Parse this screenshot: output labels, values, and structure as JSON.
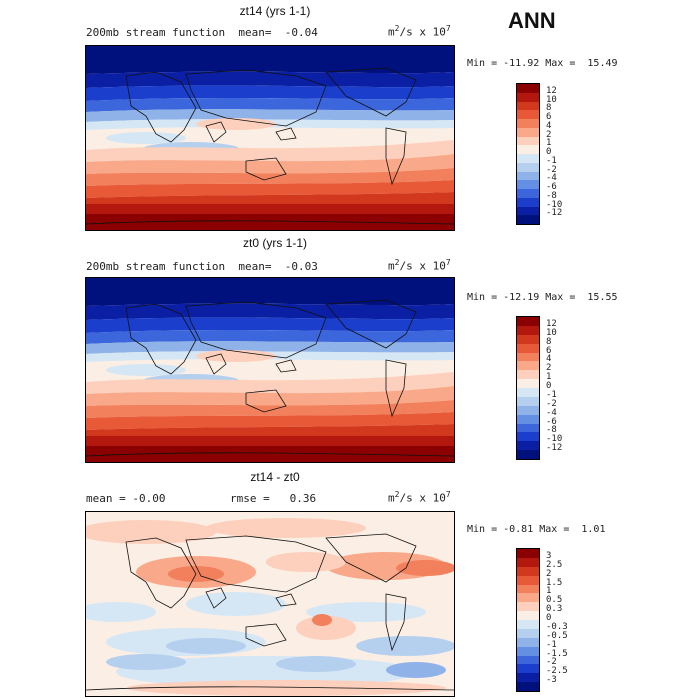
{
  "season": "ANN",
  "panels": [
    {
      "id": "zt14",
      "title": "zt14 (yrs 1-1)",
      "subtitle_left": "200mb stream function",
      "mean_label": "mean=",
      "mean_value": "-0.04",
      "units_base": "m",
      "units_sup": "2",
      "units_mid": "/s x 10",
      "units_sup2": "7",
      "minmax": "Min = -11.92 Max =  15.49",
      "colorbar_labels": [
        "12",
        "10",
        "8",
        "6",
        "4",
        "2",
        "1",
        "0",
        "-1",
        "-2",
        "-4",
        "-6",
        "-8",
        "-10",
        "-12"
      ],
      "colorbar_colors": [
        "#8b0000",
        "#b2180e",
        "#d2381d",
        "#e85a37",
        "#f2805c",
        "#f9a98a",
        "#fcd0bc",
        "#fbeee4",
        "#d5e6f5",
        "#b5d0ee",
        "#8fb3e8",
        "#6390e4",
        "#3c66dc",
        "#1b3fcc",
        "#0a1fa4",
        "#00107d"
      ]
    },
    {
      "id": "zt0",
      "title": "zt0 (yrs 1-1)",
      "subtitle_left": "200mb stream function",
      "mean_label": "mean=",
      "mean_value": "-0.03",
      "units_base": "m",
      "units_sup": "2",
      "units_mid": "/s x 10",
      "units_sup2": "7",
      "minmax": "Min = -12.19 Max =  15.55",
      "colorbar_labels": [
        "12",
        "10",
        "8",
        "6",
        "4",
        "2",
        "1",
        "0",
        "-1",
        "-2",
        "-4",
        "-6",
        "-8",
        "-10",
        "-12"
      ],
      "colorbar_colors": [
        "#8b0000",
        "#b2180e",
        "#d2381d",
        "#e85a37",
        "#f2805c",
        "#f9a98a",
        "#fcd0bc",
        "#fbeee4",
        "#d5e6f5",
        "#b5d0ee",
        "#8fb3e8",
        "#6390e4",
        "#3c66dc",
        "#1b3fcc",
        "#0a1fa4",
        "#00107d"
      ]
    },
    {
      "id": "diff",
      "title": "zt14 - zt0",
      "subtitle_left": "mean =  -0.00",
      "rmse_label": "rmse =",
      "rmse_value": "0.36",
      "units_base": "m",
      "units_sup": "2",
      "units_mid": "/s x 10",
      "units_sup2": "7",
      "minmax": "Min = -0.81 Max =  1.01",
      "colorbar_labels": [
        "3",
        "2.5",
        "2",
        "1.5",
        "1",
        "0.5",
        "0.3",
        "0",
        "-0.3",
        "-0.5",
        "-1",
        "-1.5",
        "-2",
        "-2.5",
        "-3"
      ],
      "colorbar_colors": [
        "#8b0000",
        "#b2180e",
        "#d2381d",
        "#e85a37",
        "#f2805c",
        "#f9a98a",
        "#fcd0bc",
        "#fbeee4",
        "#d5e6f5",
        "#b5d0ee",
        "#8fb3e8",
        "#6390e4",
        "#3c66dc",
        "#1b3fcc",
        "#0a1fa4",
        "#00107d"
      ]
    }
  ]
}
